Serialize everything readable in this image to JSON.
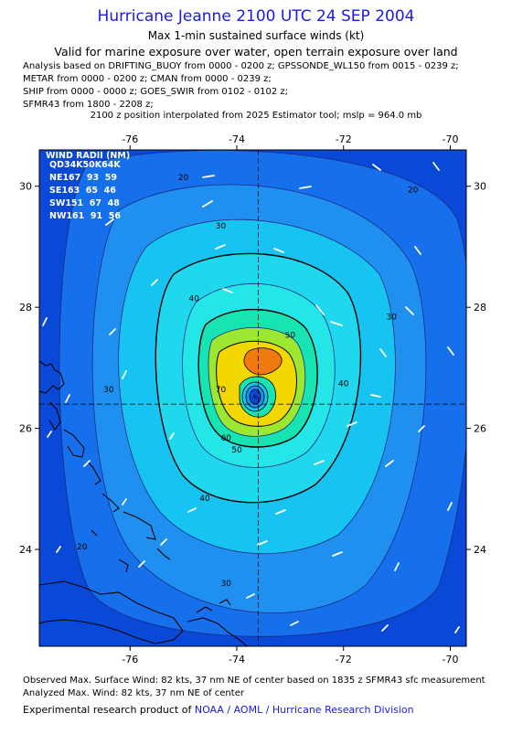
{
  "header": {
    "title": "Hurricane Jeanne 2100 UTC 24 SEP 2004",
    "subtitle": "Max 1-min sustained surface winds (kt)",
    "validity": "Valid for marine exposure over water, open terrain exposure over land"
  },
  "analysis_sources": [
    "Analysis based on  DRIFTING_BUOY from 0000 - 0200 z;  GPSSONDE_WL150 from 0015 - 0239 z;",
    "METAR from 0000 - 0200 z;  CMAN from 0000 - 0239 z;",
    "SHIP from 0000 - 0000 z;  GOES_SWIR from 0102 - 0102 z;",
    "SFMR43 from 1800 - 2208 z;"
  ],
  "position_note": "2100 z position interpolated from 2025 Estimator tool; mslp = 964.0 mb",
  "map": {
    "lon_ticks": [
      "-76",
      "-74",
      "-72",
      "-70"
    ],
    "lat_ticks": [
      "30",
      "28",
      "26",
      "24"
    ],
    "center_lon": -73.6,
    "center_lat": 26.4,
    "lon_range": [
      -77.7,
      -69.7
    ],
    "lat_range": [
      22.4,
      30.6
    ],
    "contour_labels": [
      {
        "text": "20",
        "lon": -75.0,
        "lat": 30.1
      },
      {
        "text": "20",
        "lon": -70.7,
        "lat": 29.9
      },
      {
        "text": "20",
        "lon": -76.9,
        "lat": 24.0
      },
      {
        "text": "30",
        "lon": -74.3,
        "lat": 29.3
      },
      {
        "text": "30",
        "lon": -76.4,
        "lat": 26.6
      },
      {
        "text": "30",
        "lon": -71.1,
        "lat": 27.8
      },
      {
        "text": "30",
        "lon": -74.2,
        "lat": 23.4
      },
      {
        "text": "40",
        "lon": -74.8,
        "lat": 28.1
      },
      {
        "text": "40",
        "lon": -72.0,
        "lat": 26.7
      },
      {
        "text": "40",
        "lon": -74.6,
        "lat": 24.8
      },
      {
        "text": "50",
        "lon": -73.0,
        "lat": 27.5
      },
      {
        "text": "50",
        "lon": -74.0,
        "lat": 25.6
      },
      {
        "text": "60",
        "lon": -74.2,
        "lat": 25.8
      },
      {
        "text": "70",
        "lon": -74.3,
        "lat": 26.6
      }
    ],
    "wind_radii": {
      "title": "WIND RADII (NM)",
      "header": "QD34K50K64K",
      "rows": [
        "NE167  93  59",
        "SE163  65  46",
        "SW151  67  48",
        "NW161  91  56"
      ]
    }
  },
  "footer": {
    "observed": "Observed Max. Surface Wind: 82 kts, 37 nm NE of center based on 1835 z SFMR43 sfc measurement",
    "analyzed": "Analyzed Max. Wind: 82 kts, 37 nm NE of center",
    "credit_prefix": "Experimental research product of",
    "credit_org": "NOAA / AOML / Hurricane Research Division"
  },
  "colors": {
    "title": "#1a1ae6",
    "band_20": "#0b5fe8",
    "band_30": "#1f8ff0",
    "band_40": "#17c3f0",
    "band_50": "#22e6e8",
    "band_60": "#18e3b2",
    "band_70": "#9ce830",
    "band_80": "#f2d800",
    "band_max": "#f07a10"
  }
}
